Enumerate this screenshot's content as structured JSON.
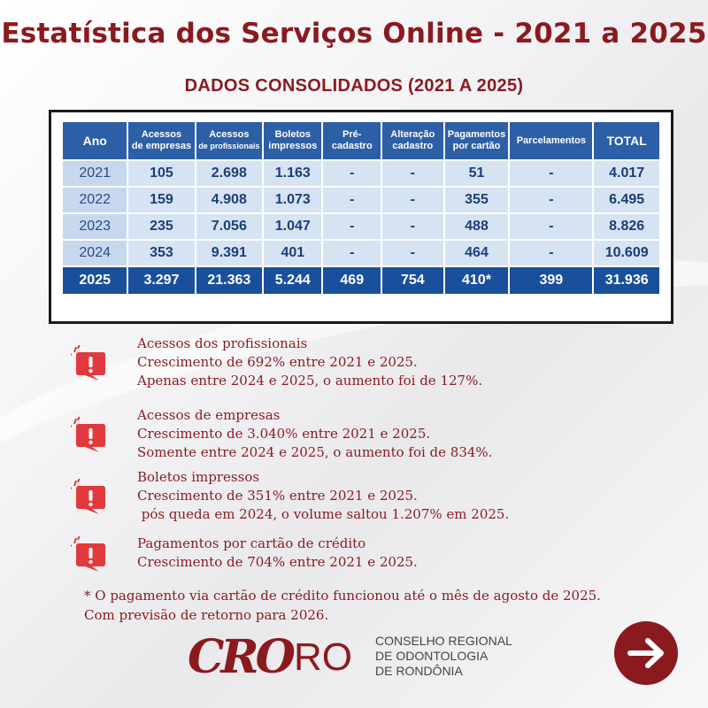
{
  "header": {
    "title": "Estatística dos Serviços Online - 2021 a 2025",
    "subtitle": "DADOS CONSOLIDADOS (2021 A 2025)"
  },
  "table": {
    "headers": [
      [
        "Ano"
      ],
      [
        "Acessos",
        "de empresas"
      ],
      [
        "Acessos",
        "de profissionais"
      ],
      [
        "Boletos",
        "impressos"
      ],
      [
        "Pré-cadastro"
      ],
      [
        "Alteração",
        "cadastro"
      ],
      [
        "Pagamentos",
        "por cartão"
      ],
      [
        "Parcelamentos"
      ],
      [
        "TOTAL"
      ]
    ],
    "rows": [
      [
        "2021",
        "105",
        "2.698",
        "1.163",
        "-",
        "-",
        "51",
        "-",
        "4.017"
      ],
      [
        "2022",
        "159",
        "4.908",
        "1.073",
        "-",
        "-",
        "355",
        "-",
        "6.495"
      ],
      [
        "2023",
        "235",
        "7.056",
        "1.047",
        "-",
        "-",
        "488",
        "-",
        "8.826"
      ],
      [
        "2024",
        "353",
        "9.391",
        "401",
        "-",
        "-",
        "464",
        "-",
        "10.609"
      ],
      [
        "2025",
        "3.297",
        "21.363",
        "5.244",
        "469",
        "754",
        "410*",
        "399",
        "31.936"
      ]
    ]
  },
  "notes": [
    {
      "title": "Acessos dos profissionais",
      "lines": [
        "Crescimento de 692% entre 2021 e 2025.",
        "Apenas entre 2024 e 2025, o aumento foi de 127%."
      ]
    },
    {
      "title": "Acessos de empresas",
      "lines": [
        "Crescimento de 3.040% entre 2021 e 2025.",
        "Somente entre 2024 e 2025, o aumento foi de 834%."
      ]
    },
    {
      "title": "Boletos impressos",
      "lines": [
        "Crescimento de 351% entre 2021 e 2025.",
        " pós queda em 2024, o volume saltou 1.207% em 2025."
      ]
    },
    {
      "title": "Pagamentos por cartão de crédito",
      "lines": [
        "Crescimento de 704% entre 2021 e 2025."
      ]
    }
  ],
  "footnote": {
    "line1": "* O pagamento via cartão de crédito funcionou até o mês de agosto de 2025.",
    "line2": "Com previsão de retorno para 2026."
  },
  "logo": {
    "mark": "CRO",
    "suffix": "RO",
    "org_line1": "CONSELHO REGIONAL",
    "org_line2": "DE ODONTOLOGIA",
    "org_line3": "DE RONDÔNIA"
  },
  "icons": {
    "alert": "alert-exclamation-icon",
    "next": "arrow-right-icon"
  },
  "colors": {
    "accent": "#8b1a1f",
    "table_header": "#2c5fa6",
    "table_cell": "#d6e3f3",
    "table_last_row": "#1a4f9c"
  }
}
